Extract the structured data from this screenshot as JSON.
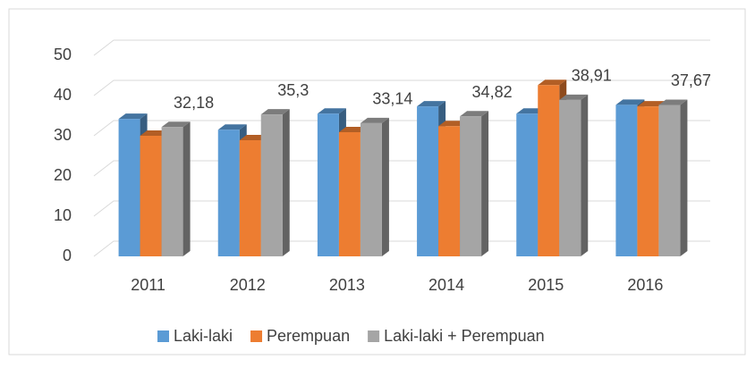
{
  "chart_data": {
    "type": "bar3d",
    "categories": [
      "2011",
      "2012",
      "2013",
      "2014",
      "2015",
      "2016"
    ],
    "series": [
      {
        "name": "Laki-laki",
        "color": "#5b9bd5",
        "values": [
          34.2,
          31.5,
          35.5,
          37.3,
          35.5,
          37.7
        ]
      },
      {
        "name": "Perempuan",
        "color": "#ed7d31",
        "values": [
          30.0,
          28.9,
          30.9,
          32.4,
          42.6,
          37.3
        ]
      },
      {
        "name": "Laki-laki + Perempuan",
        "color": "#a5a5a5",
        "values": [
          32.18,
          35.3,
          33.14,
          34.82,
          38.91,
          37.67
        ],
        "value_labels": [
          "32,18",
          "35,3",
          "33,14",
          "34,82",
          "38,91",
          "37,67"
        ]
      }
    ],
    "ylim": [
      0,
      50
    ],
    "yticks": [
      0,
      10,
      20,
      30,
      40,
      50
    ],
    "grid": true,
    "legend": "bottom"
  }
}
